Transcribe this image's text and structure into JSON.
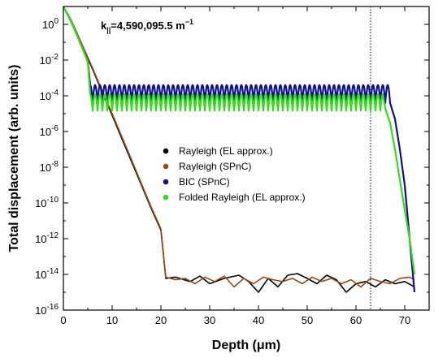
{
  "chart_data": {
    "type": "line",
    "title": "",
    "xlabel": "Depth (μm)",
    "ylabel": "Total displacement (arb. units)",
    "yscale": "log",
    "xlim": [
      0,
      75
    ],
    "ylim_exponent": [
      -16,
      1
    ],
    "x_ticks": [
      0,
      10,
      20,
      30,
      40,
      50,
      60,
      70
    ],
    "y_tick_labels": [
      {
        "base": "10",
        "exp": "0",
        "e": 0
      },
      {
        "base": "10",
        "exp": "-2",
        "e": -2
      },
      {
        "base": "10",
        "exp": "-4",
        "e": -4
      },
      {
        "base": "10",
        "exp": "-6",
        "e": -6
      },
      {
        "base": "10",
        "exp": "-8",
        "e": -8
      },
      {
        "base": "10",
        "exp": "-10",
        "e": -10
      },
      {
        "base": "10",
        "exp": "-12",
        "e": -12
      },
      {
        "base": "10",
        "exp": "-14",
        "e": -14
      },
      {
        "base": "10",
        "exp": "-16",
        "e": -16
      }
    ],
    "grid": false,
    "legend_placement": "center-right",
    "annotation": {
      "main": "k",
      "sub": "||",
      "rest": "=4,590,095.5 m",
      "sup": "−1"
    },
    "vertical_line_x": 63,
    "series": [
      {
        "name": "Rayleigh (EL approx.)",
        "color": "#000000",
        "points": [
          [
            0,
            10
          ],
          [
            1,
            3.2
          ],
          [
            2,
            0.9
          ],
          [
            4,
            0.05
          ],
          [
            6,
            0.003
          ],
          [
            8,
            0.00015
          ],
          [
            10,
            8e-06
          ],
          [
            12,
            4e-07
          ],
          [
            14,
            2e-08
          ],
          [
            16,
            1e-09
          ],
          [
            18,
            5e-11
          ],
          [
            20,
            3e-12
          ],
          [
            21,
            6e-15
          ],
          [
            23,
            7e-15
          ],
          [
            26,
            4e-15
          ],
          [
            28,
            8e-15
          ],
          [
            30,
            3e-15
          ],
          [
            33,
            6e-15
          ],
          [
            36,
            9e-15
          ],
          [
            38,
            4e-15
          ],
          [
            40,
            1e-15
          ],
          [
            42,
            6e-15
          ],
          [
            44,
            2e-15
          ],
          [
            46,
            9e-15
          ],
          [
            48,
            1.1e-14
          ],
          [
            50,
            6e-15
          ],
          [
            52,
            3e-15
          ],
          [
            54,
            9e-15
          ],
          [
            56,
            5e-15
          ],
          [
            58,
            1e-15
          ],
          [
            60,
            3e-15
          ],
          [
            62,
            4e-15
          ],
          [
            64,
            2e-15
          ],
          [
            66,
            5e-15
          ],
          [
            68,
            3e-15
          ],
          [
            70,
            4e-15
          ],
          [
            72,
            2e-15
          ]
        ]
      },
      {
        "name": "Rayleigh (SPnC)",
        "color": "#9a4a14",
        "points": [
          [
            0,
            10
          ],
          [
            1,
            3.5
          ],
          [
            2,
            1.0
          ],
          [
            4,
            0.06
          ],
          [
            6,
            0.0035
          ],
          [
            8,
            0.00018
          ],
          [
            10,
            1e-05
          ],
          [
            12,
            5e-07
          ],
          [
            14,
            2.5e-08
          ],
          [
            16,
            1.2e-09
          ],
          [
            18,
            6e-11
          ],
          [
            20,
            3.5e-12
          ],
          [
            21,
            7e-15
          ],
          [
            23,
            5e-15
          ],
          [
            25,
            6e-15
          ],
          [
            27,
            3e-15
          ],
          [
            29,
            7e-15
          ],
          [
            31,
            4e-15
          ],
          [
            33,
            8e-15
          ],
          [
            35,
            2e-15
          ],
          [
            37,
            6e-15
          ],
          [
            39,
            3e-15
          ],
          [
            41,
            7e-15
          ],
          [
            43,
            5e-15
          ],
          [
            45,
            4e-15
          ],
          [
            47,
            6e-15
          ],
          [
            49,
            3e-15
          ],
          [
            51,
            7e-15
          ],
          [
            53,
            4e-15
          ],
          [
            55,
            6e-15
          ],
          [
            57,
            3e-15
          ],
          [
            59,
            5e-15
          ],
          [
            61,
            2e-15
          ],
          [
            63,
            6e-15
          ],
          [
            65,
            4e-15
          ],
          [
            67,
            3e-15
          ],
          [
            69,
            6e-15
          ],
          [
            71,
            7e-15
          ],
          [
            72,
            5e-15
          ]
        ]
      },
      {
        "name": "BIC (SPnC)",
        "color": "#10108c",
        "points": [
          [
            0,
            10
          ],
          [
            1,
            3
          ],
          [
            2,
            0.8
          ],
          [
            3,
            0.18
          ],
          [
            4,
            0.04
          ],
          [
            5,
            0.009
          ],
          [
            5.5,
            0.0002
          ],
          [
            6,
            9e-05
          ],
          [
            66,
            0.0003
          ],
          [
            67,
            0.0001
          ],
          [
            68,
            5e-06
          ],
          [
            69,
            1e-07
          ],
          [
            70,
            1e-09
          ],
          [
            71,
            1e-12
          ],
          [
            72,
            1e-15
          ]
        ],
        "oscillation": {
          "from": 5.5,
          "to": 67,
          "high": 0.0004,
          "low": 4e-05,
          "period": 1.0
        }
      },
      {
        "name": "Folded Rayleigh (EL approx.)",
        "color": "#33dd1a",
        "points": [
          [
            0,
            10
          ],
          [
            1,
            3
          ],
          [
            2,
            0.8
          ],
          [
            3,
            0.18
          ],
          [
            4,
            0.04
          ],
          [
            5,
            0.008
          ],
          [
            5.5,
            0.0001
          ],
          [
            6,
            3e-05
          ],
          [
            65,
            8e-05
          ],
          [
            66,
            2e-05
          ],
          [
            67,
            3e-06
          ],
          [
            68,
            1e-07
          ],
          [
            69,
            2e-09
          ],
          [
            70,
            4e-11
          ],
          [
            71,
            1e-12
          ],
          [
            72,
            1e-14
          ]
        ],
        "oscillation": {
          "from": 5.5,
          "to": 65.5,
          "high": 0.00012,
          "low": 1.5e-05,
          "period": 1.0
        }
      }
    ]
  }
}
